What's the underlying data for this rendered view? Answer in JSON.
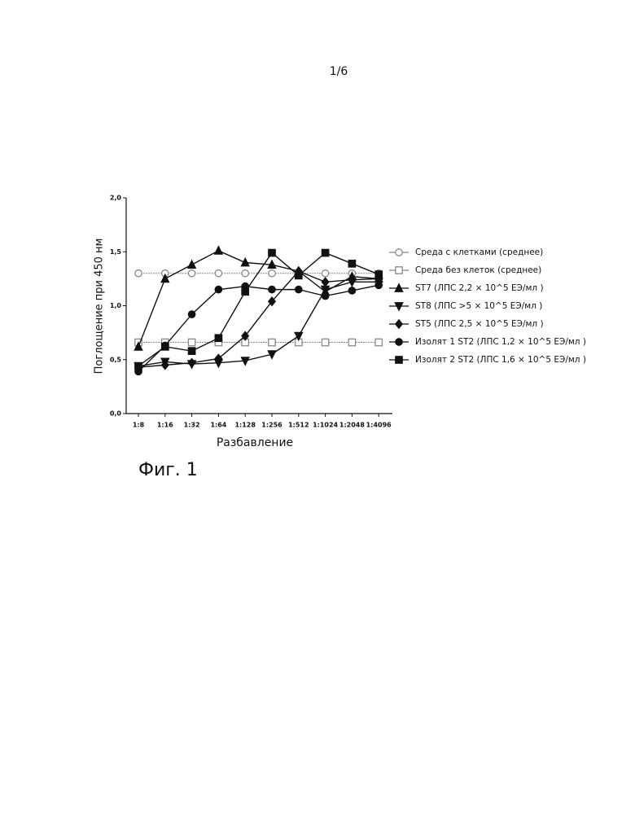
{
  "page_number": "1/6",
  "figure_label": "Фиг. 1",
  "chart_data": {
    "type": "line",
    "x_label": "Разбавление",
    "y_label": "Поглощение при 450 нм",
    "categories": [
      "1:8",
      "1:16",
      "1:32",
      "1:64",
      "1:128",
      "1:256",
      "1:512",
      "1:1024",
      "1:2048",
      "1:4096"
    ],
    "ylim": [
      0,
      2
    ],
    "yticks": [
      {
        "value": 0,
        "label": "0,0"
      },
      {
        "value": 0.5,
        "label": "0,5"
      },
      {
        "value": 1,
        "label": "1,0"
      },
      {
        "value": 1.5,
        "label": "1,5"
      },
      {
        "value": 2,
        "label": "2,0"
      }
    ],
    "series": [
      {
        "name": "Среда с клетками (среднее)",
        "color": "#888888",
        "marker": "circle",
        "filled": false,
        "values": [
          1.3,
          1.3,
          1.3,
          1.3,
          1.3,
          1.3,
          1.3,
          1.3,
          1.3,
          1.3
        ]
      },
      {
        "name": "Среда без клеток (среднее)",
        "color": "#888888",
        "marker": "square",
        "filled": false,
        "values": [
          0.66,
          0.66,
          0.66,
          0.66,
          0.66,
          0.66,
          0.66,
          0.66,
          0.66,
          0.66
        ]
      },
      {
        "name": "ST7 (ЛПС 2,2 × 10^5 ЕЭ/мл )",
        "color": "#111111",
        "marker": "triangle-up",
        "filled": true,
        "values": [
          0.62,
          1.25,
          1.38,
          1.51,
          1.4,
          1.38,
          1.32,
          1.13,
          1.27,
          1.25
        ]
      },
      {
        "name": "ST8 (ЛПС >5 × 10^5 ЕЭ/мл )",
        "color": "#111111",
        "marker": "triangle-down",
        "filled": true,
        "values": [
          0.44,
          0.48,
          0.46,
          0.47,
          0.49,
          0.55,
          0.72,
          1.15,
          1.22,
          1.22
        ]
      },
      {
        "name": "ST5 (ЛПС 2,5 × 10^5 ЕЭ/мл )",
        "color": "#111111",
        "marker": "diamond",
        "filled": true,
        "values": [
          0.43,
          0.45,
          0.47,
          0.51,
          0.72,
          1.04,
          1.32,
          1.22,
          1.24,
          1.25
        ]
      },
      {
        "name": "Изолят 1 ST2 (ЛПС 1,2 × 10^5 ЕЭ/мл )",
        "color": "#111111",
        "marker": "circle",
        "filled": true,
        "values": [
          0.39,
          0.63,
          0.92,
          1.15,
          1.18,
          1.15,
          1.15,
          1.09,
          1.14,
          1.19
        ]
      },
      {
        "name": "Изолят 2 ST2 (ЛПС 1,6 × 10^5 ЕЭ/мл )",
        "color": "#111111",
        "marker": "square",
        "filled": true,
        "values": [
          0.44,
          0.62,
          0.58,
          0.7,
          1.13,
          1.49,
          1.28,
          1.49,
          1.39,
          1.29
        ]
      }
    ]
  }
}
